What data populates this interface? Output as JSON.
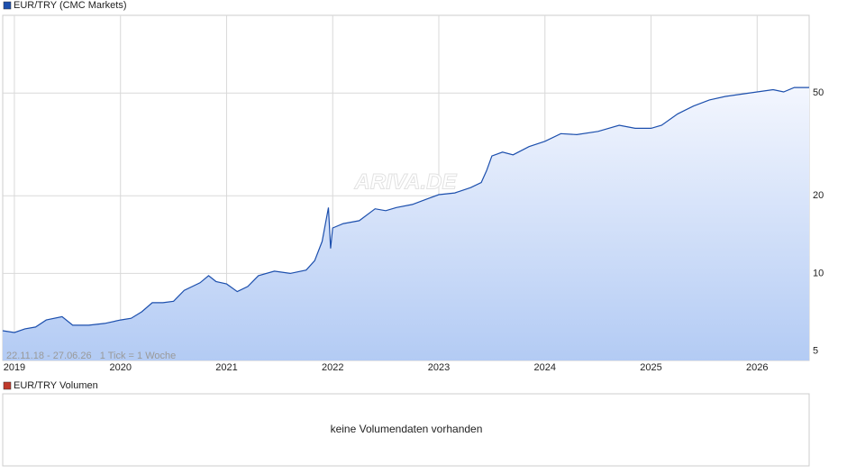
{
  "chart_data": [
    {
      "type": "area",
      "annotation": "22.11.18 - 27.06.26   1 Tick = 1 Woche",
      "watermark": "ARIVA.DE",
      "x": [
        2018.89,
        2019.0,
        2019.1,
        2019.2,
        2019.3,
        2019.45,
        2019.55,
        2019.7,
        2019.85,
        2020.0,
        2020.1,
        2020.2,
        2020.3,
        2020.4,
        2020.5,
        2020.6,
        2020.75,
        2020.83,
        2020.9,
        2021.0,
        2021.1,
        2021.2,
        2021.3,
        2021.45,
        2021.6,
        2021.75,
        2021.83,
        2021.9,
        2021.96,
        2021.98,
        2022.0,
        2022.1,
        2022.25,
        2022.4,
        2022.5,
        2022.6,
        2022.75,
        2022.9,
        2023.0,
        2023.15,
        2023.3,
        2023.4,
        2023.45,
        2023.5,
        2023.6,
        2023.7,
        2023.85,
        2024.0,
        2024.15,
        2024.3,
        2024.5,
        2024.6,
        2024.7,
        2024.85,
        2025.0,
        2025.1,
        2025.25,
        2025.4,
        2025.55,
        2025.7,
        2025.85,
        2026.0,
        2026.15,
        2026.25,
        2026.35,
        2026.49
      ],
      "series": [
        {
          "name": "EUR/TRY (CMC Markets)",
          "color": "#1c4fad",
          "values": [
            6.0,
            5.9,
            6.1,
            6.2,
            6.6,
            6.8,
            6.3,
            6.3,
            6.4,
            6.6,
            6.7,
            7.1,
            7.7,
            7.7,
            7.8,
            8.6,
            9.2,
            9.8,
            9.3,
            9.1,
            8.5,
            8.9,
            9.8,
            10.2,
            10.0,
            10.3,
            11.2,
            13.3,
            18.0,
            12.5,
            15.0,
            15.6,
            16.0,
            17.8,
            17.5,
            18.0,
            18.5,
            19.5,
            20.2,
            20.5,
            21.5,
            22.5,
            25.0,
            28.5,
            29.5,
            28.8,
            31.0,
            32.5,
            34.8,
            34.5,
            35.5,
            36.5,
            37.5,
            36.5,
            36.5,
            37.5,
            41.5,
            44.5,
            47.0,
            48.5,
            49.5,
            50.5,
            51.5,
            50.5,
            52.5,
            52.5
          ]
        }
      ],
      "xlim": [
        2018.89,
        2026.49
      ],
      "xticks": [
        2019,
        2020,
        2021,
        2022,
        2023,
        2024,
        2025,
        2026
      ],
      "ylim": [
        4.6,
        100
      ],
      "yticks": [
        5,
        10,
        20,
        50
      ],
      "log_y": true,
      "grid": true
    },
    {
      "type": "empty",
      "series": [
        {
          "name": "EUR/TRY Volumen",
          "color": "#c0392b"
        }
      ],
      "message": "keine Volumendaten vorhanden"
    }
  ]
}
